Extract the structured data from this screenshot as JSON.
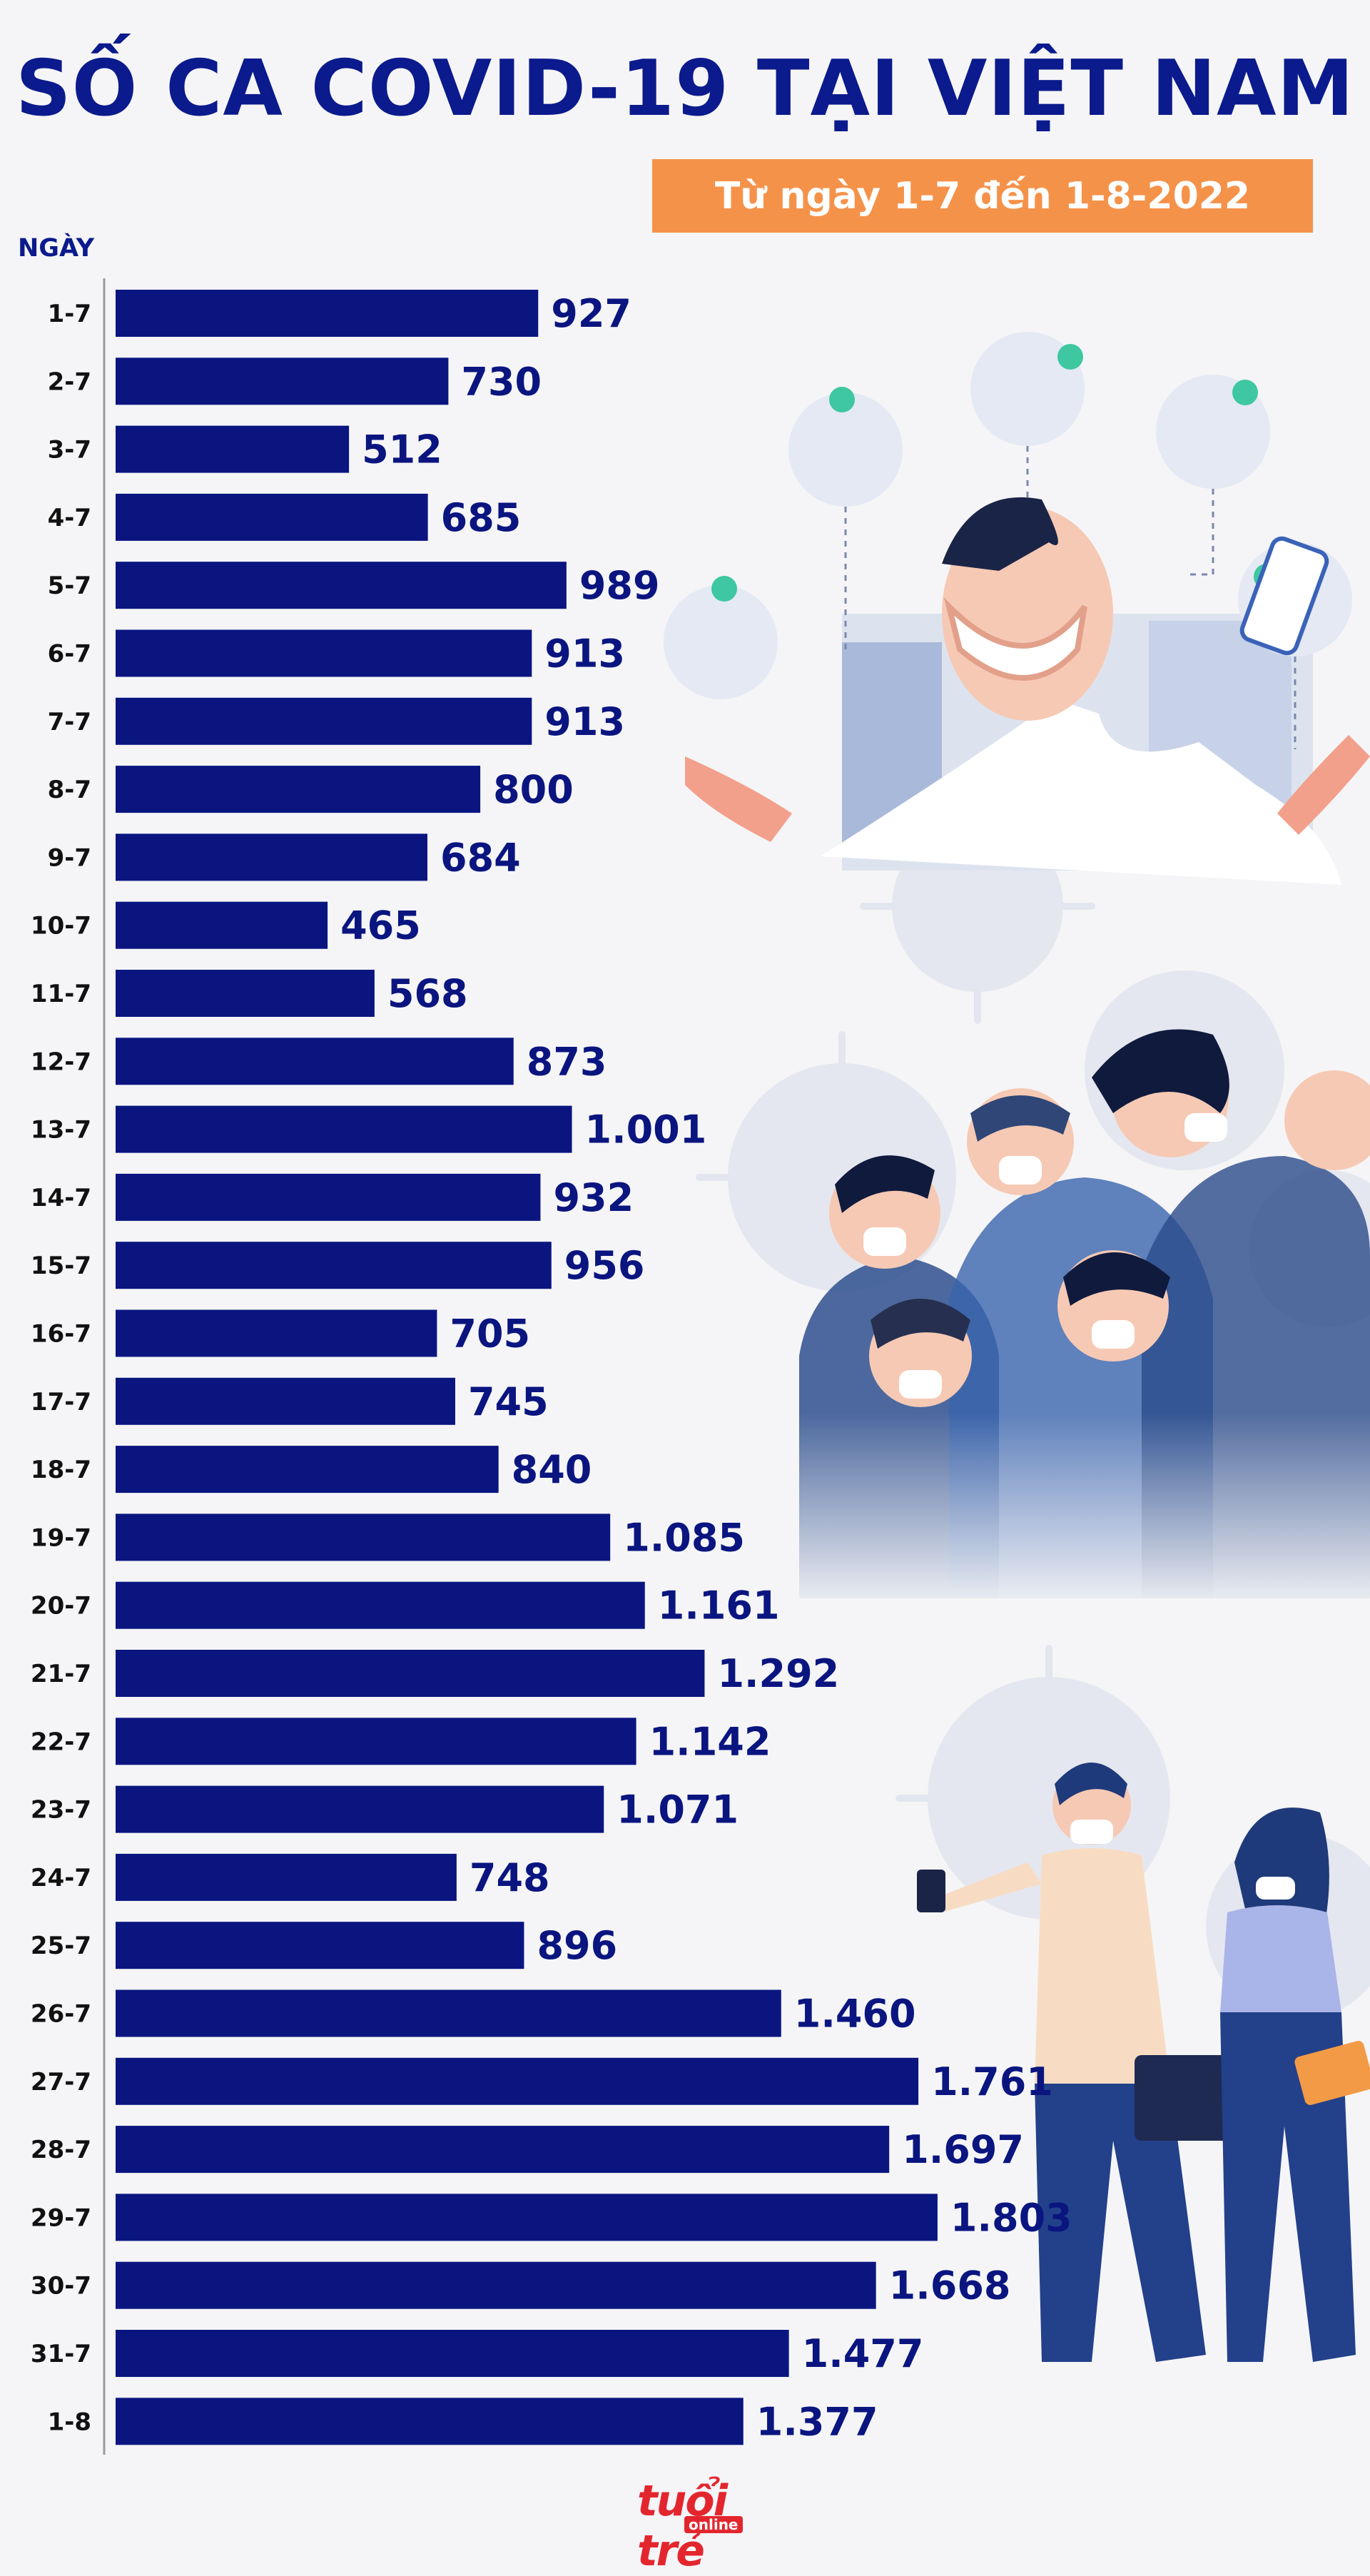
{
  "header": {
    "title": "SỐ CA COVID-19 TẠI VIỆT NAM",
    "subtitle": "Từ ngày 1-7 đến 1-8-2022"
  },
  "colors": {
    "bar": "#0a1580",
    "title": "#0b1a8c",
    "subtitle_bg": "#f5924a",
    "background": "#f5f5f7",
    "logo": "#e3262e"
  },
  "logo": {
    "main": "tuổi trẻ",
    "sub": "online"
  },
  "chart_data": {
    "type": "bar",
    "orientation": "horizontal",
    "title": "SỐ CA COVID-19 TẠI VIỆT NAM",
    "subtitle": "Từ ngày 1-7 đến 1-8-2022",
    "xlabel": "",
    "ylabel": "NGÀY",
    "xlim": [
      0,
      2000
    ],
    "grid": false,
    "categories": [
      "1-7",
      "2-7",
      "3-7",
      "4-7",
      "5-7",
      "6-7",
      "7-7",
      "8-7",
      "9-7",
      "10-7",
      "11-7",
      "12-7",
      "13-7",
      "14-7",
      "15-7",
      "16-7",
      "17-7",
      "18-7",
      "19-7",
      "20-7",
      "21-7",
      "22-7",
      "23-7",
      "24-7",
      "25-7",
      "26-7",
      "27-7",
      "28-7",
      "29-7",
      "30-7",
      "31-7",
      "1-8"
    ],
    "values": [
      927,
      730,
      512,
      685,
      989,
      913,
      913,
      800,
      684,
      465,
      568,
      873,
      1001,
      932,
      956,
      705,
      745,
      840,
      1085,
      1161,
      1292,
      1142,
      1071,
      748,
      896,
      1460,
      1761,
      1697,
      1803,
      1668,
      1477,
      1377
    ],
    "value_labels": [
      "927",
      "730",
      "512",
      "685",
      "989",
      "913",
      "913",
      "800",
      "684",
      "465",
      "568",
      "873",
      "1.001",
      "932",
      "956",
      "705",
      "745",
      "840",
      "1.085",
      "1.161",
      "1.292",
      "1.142",
      "1.071",
      "748",
      "896",
      "1.460",
      "1.761",
      "1.697",
      "1.803",
      "1.668",
      "1.477",
      "1.377"
    ]
  }
}
